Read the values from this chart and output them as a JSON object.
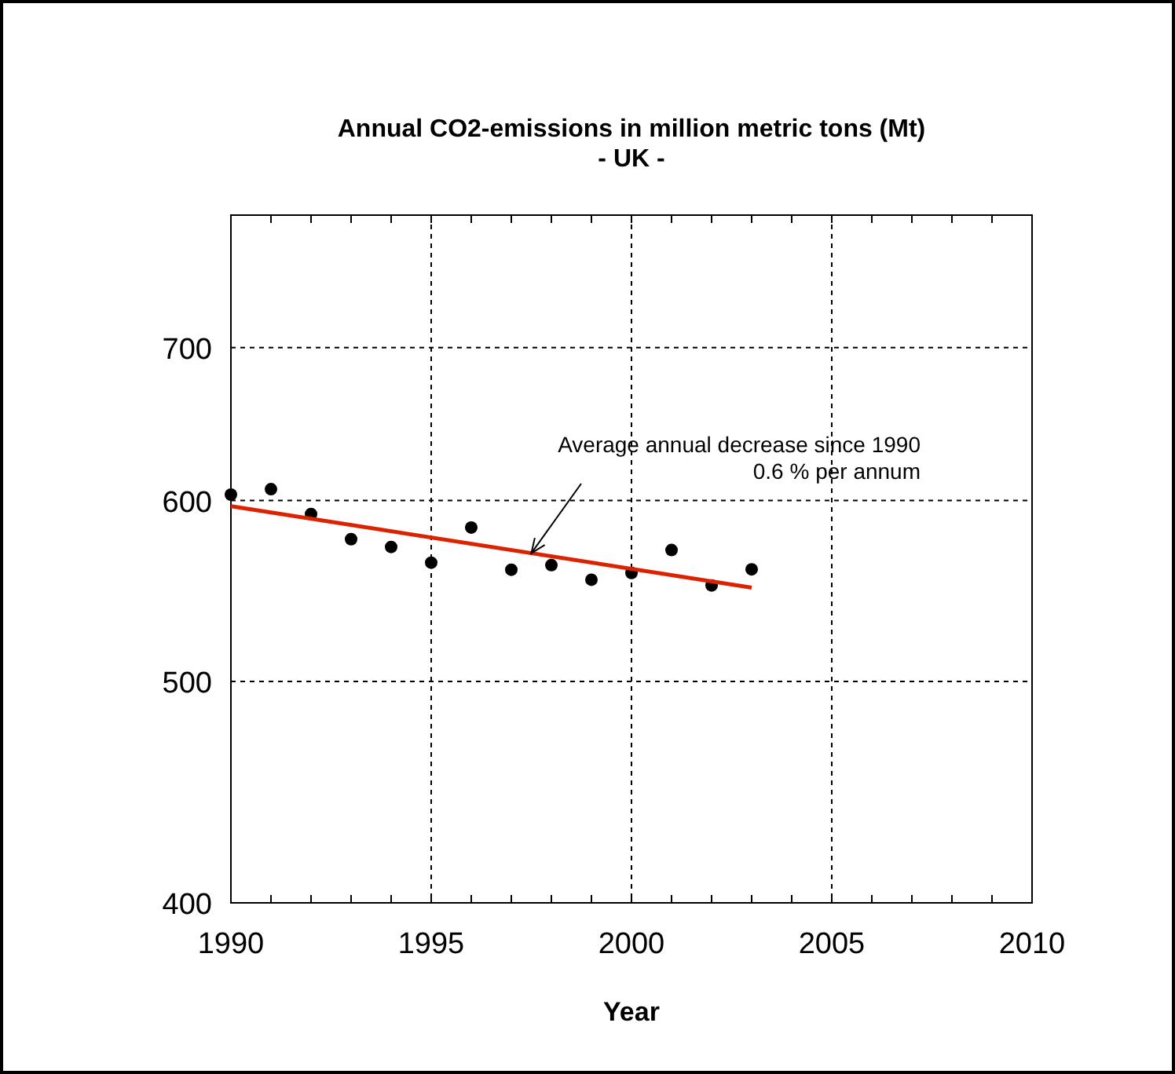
{
  "chart_data": {
    "type": "scatter",
    "title": "Annual CO2-emissions in million metric tons (Mt)",
    "subtitle": "- UK -",
    "xlabel": "Year",
    "x": [
      1990,
      1991,
      1992,
      1993,
      1994,
      1995,
      1996,
      1997,
      1998,
      1999,
      2000,
      2001,
      2002,
      2003
    ],
    "series": [
      {
        "color": "#000000",
        "marker": "circle",
        "values": [
          603.6,
          606.9,
          591.9,
          577.1,
          572.6,
          563.6,
          583.9,
          559.6,
          562.2,
          554.0,
          557.8,
          570.8,
          550.8,
          559.8
        ]
      },
      {
        "type": "line",
        "color": "#dd2200",
        "marker": "none",
        "line_style": "solid",
        "x": [
          1990,
          2003
        ],
        "values": [
          596.6,
          549.6
        ]
      }
    ],
    "xlim": [
      1990,
      2010
    ],
    "xticks": [
      1990,
      1995,
      2000,
      2005,
      2010
    ],
    "ylim": [
      400,
      800
    ],
    "yticks": [
      400,
      500,
      600,
      700
    ],
    "log": "y",
    "grid": true,
    "annotations": [
      {
        "text": "Average annual decrease since 1990\n0.6 % per annum",
        "x": 1997.5,
        "y": 569
      }
    ]
  }
}
